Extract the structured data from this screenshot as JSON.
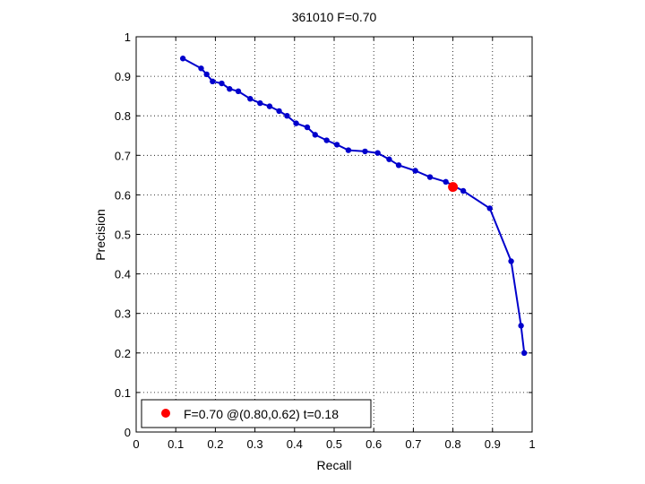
{
  "chart_data": {
    "type": "line",
    "title": "361010 F=0.70",
    "xlabel": "Recall",
    "ylabel": "Precision",
    "xlim": [
      0,
      1
    ],
    "ylim": [
      0,
      1
    ],
    "grid": true,
    "legend_position": "bottom-left",
    "x_ticks": [
      "0",
      "0.1",
      "0.2",
      "0.3",
      "0.4",
      "0.5",
      "0.6",
      "0.7",
      "0.8",
      "0.9",
      "1"
    ],
    "y_ticks": [
      "0",
      "0.1",
      "0.2",
      "0.3",
      "0.4",
      "0.5",
      "0.6",
      "0.7",
      "0.8",
      "0.9",
      "1"
    ],
    "series": [
      {
        "color": "#0000cc",
        "points": [
          [
            0.118,
            0.945
          ],
          [
            0.164,
            0.92
          ],
          [
            0.178,
            0.905
          ],
          [
            0.193,
            0.887
          ],
          [
            0.216,
            0.882
          ],
          [
            0.236,
            0.868
          ],
          [
            0.258,
            0.862
          ],
          [
            0.288,
            0.843
          ],
          [
            0.313,
            0.832
          ],
          [
            0.337,
            0.824
          ],
          [
            0.361,
            0.812
          ],
          [
            0.381,
            0.8
          ],
          [
            0.404,
            0.781
          ],
          [
            0.432,
            0.771
          ],
          [
            0.452,
            0.752
          ],
          [
            0.481,
            0.738
          ],
          [
            0.507,
            0.727
          ],
          [
            0.536,
            0.713
          ],
          [
            0.578,
            0.71
          ],
          [
            0.61,
            0.706
          ],
          [
            0.639,
            0.69
          ],
          [
            0.663,
            0.675
          ],
          [
            0.705,
            0.661
          ],
          [
            0.742,
            0.645
          ],
          [
            0.782,
            0.633
          ],
          [
            0.826,
            0.61
          ],
          [
            0.893,
            0.566
          ],
          [
            0.947,
            0.432
          ],
          [
            0.972,
            0.269
          ],
          [
            0.98,
            0.2
          ]
        ]
      }
    ],
    "highlight": {
      "x": 0.8,
      "y": 0.62,
      "color": "#ff0000"
    },
    "legend": {
      "label": "F=0.70 @(0.80,0.62) t=0.18",
      "marker_color": "#ff0000"
    }
  }
}
